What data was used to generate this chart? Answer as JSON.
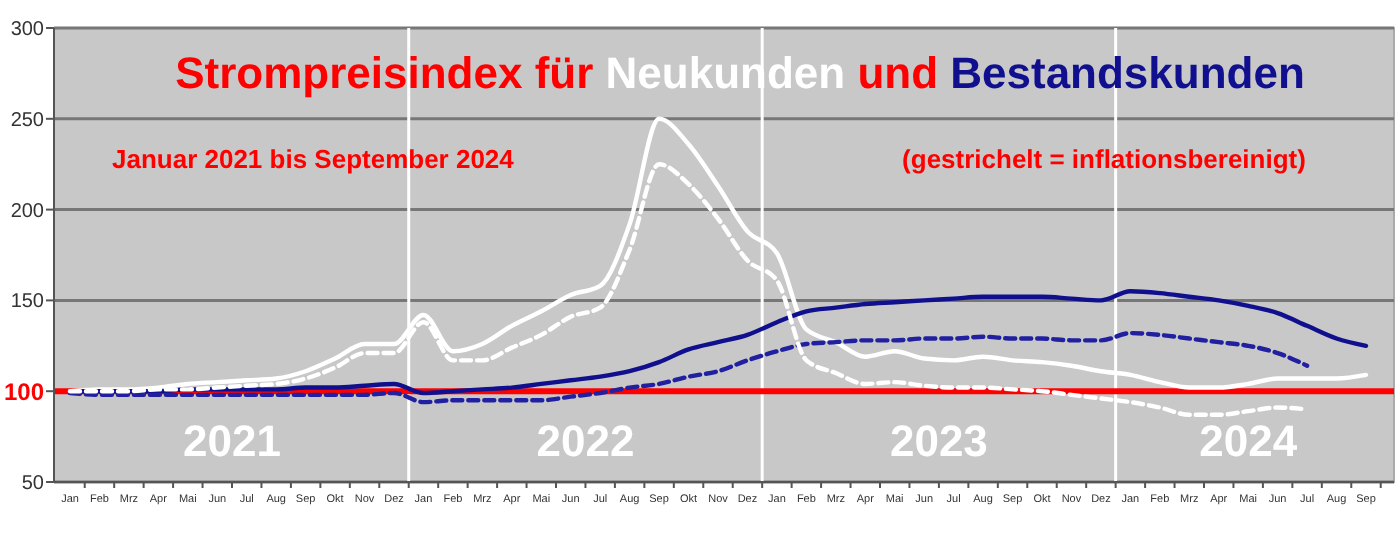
{
  "chart_data": {
    "type": "line",
    "title": "Strompreisindex für Neukunden und Bestandskunden",
    "subtitle": "Januar 2021 bis September 2024",
    "annotations": [
      "(gestrichelt = inflationsbereinigt)",
      "2021",
      "2022",
      "2023",
      "2024"
    ],
    "categories": [
      "Jan",
      "Feb",
      "Mrz",
      "Apr",
      "Mai",
      "Jun",
      "Jul",
      "Aug",
      "Sep",
      "Okt",
      "Nov",
      "Dez",
      "Jan",
      "Feb",
      "Mrz",
      "Apr",
      "Mai",
      "Jun",
      "Jul",
      "Aug",
      "Sep",
      "Okt",
      "Nov",
      "Dez",
      "Jan",
      "Feb",
      "Mrz",
      "Apr",
      "Mai",
      "Jun",
      "Jul",
      "Aug",
      "Sep",
      "Okt",
      "Nov",
      "Dez",
      "Jan",
      "Feb",
      "Mrz",
      "Apr",
      "Mai",
      "Jun",
      "Jul",
      "Aug",
      "Sep"
    ],
    "series": [
      {
        "color": "#ffffff",
        "line_style": "solid",
        "values": [
          100,
          101,
          101,
          102,
          104,
          105,
          106,
          107,
          111,
          118,
          126,
          126,
          142,
          122,
          126,
          136,
          144,
          153,
          158,
          192,
          250,
          236,
          213,
          188,
          176,
          134,
          127,
          119,
          122,
          118,
          117,
          119,
          117,
          116,
          114,
          111,
          109,
          105,
          102,
          102,
          104,
          107,
          107,
          107,
          109
        ]
      },
      {
        "color": "#ffffff",
        "line_style": "dashed",
        "values": [
          100,
          100,
          100,
          101,
          101,
          102,
          103,
          104,
          107,
          113,
          121,
          121,
          138,
          117,
          117,
          124,
          131,
          141,
          146,
          178,
          225,
          214,
          195,
          172,
          161,
          117,
          110,
          104,
          105,
          103,
          102,
          102,
          101,
          100,
          98,
          96,
          94,
          91,
          87,
          87,
          89,
          91,
          90,
          null,
          null
        ]
      },
      {
        "color": "#10108f",
        "line_style": "solid",
        "values": [
          100,
          100,
          100,
          100,
          101,
          101,
          101,
          101,
          102,
          102,
          103,
          104,
          99,
          100,
          101,
          102,
          104,
          106,
          108,
          111,
          116,
          123,
          127,
          131,
          138,
          144,
          146,
          148,
          149,
          150,
          151,
          152,
          152,
          152,
          151,
          150,
          155,
          154,
          152,
          150,
          147,
          143,
          136,
          129,
          125
        ]
      },
      {
        "color": "#2020a0",
        "line_style": "dashed",
        "values": [
          99,
          98,
          98,
          98,
          98,
          98,
          98,
          98,
          98,
          98,
          98,
          99,
          94,
          95,
          95,
          95,
          95,
          97,
          99,
          102,
          104,
          108,
          111,
          117,
          122,
          126,
          127,
          128,
          128,
          129,
          129,
          130,
          129,
          129,
          128,
          128,
          132,
          131,
          129,
          127,
          125,
          121,
          114,
          null,
          null
        ]
      }
    ],
    "ylim": [
      50,
      300
    ],
    "yticks": [
      50,
      100,
      150,
      200,
      250,
      300
    ],
    "grid": "y",
    "ref_lines": [
      {
        "axis": "y",
        "value": 100,
        "color": "#ff0000"
      }
    ]
  }
}
